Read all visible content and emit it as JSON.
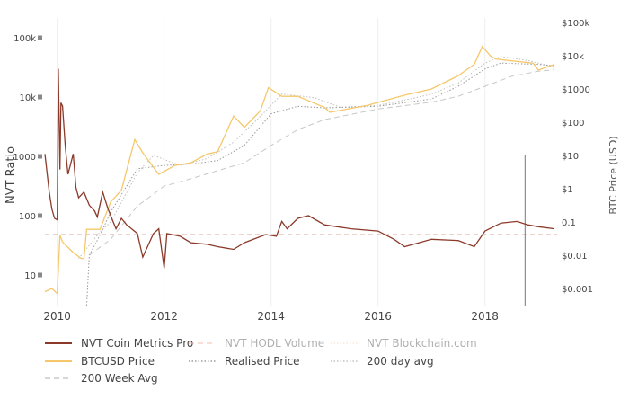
{
  "chart_data": {
    "type": "line",
    "title": "",
    "xlabel": "",
    "ylabel_left": "NVT Ratio",
    "ylabel_right": "BTC Price (USD)",
    "x_range": [
      2009.77,
      2019.35
    ],
    "left_axis": {
      "scale": "log",
      "range": [
        4,
        200000
      ],
      "ticks": [
        10,
        100,
        1000,
        10000,
        100000
      ],
      "tick_labels": [
        "10",
        "100",
        "1000",
        "10k",
        "100k"
      ]
    },
    "right_axis": {
      "scale": "log",
      "range": [
        0.0003,
        150000
      ],
      "ticks": [
        0.001,
        0.01,
        0.1,
        1,
        10,
        100,
        1000,
        10000,
        100000
      ],
      "tick_labels": [
        "$0.001",
        "$0.01",
        "0.1",
        "$1",
        "$10",
        "$100",
        "$1000",
        "$10k",
        "$100k"
      ]
    },
    "x_ticks": [
      2010,
      2012,
      2014,
      2016,
      2018
    ],
    "x_tick_labels": [
      "2010",
      "2012",
      "2014",
      "2016",
      "2018"
    ],
    "grid": {
      "vertical": true,
      "horizontal": false
    },
    "reference_line": {
      "axis": "left",
      "value": 48,
      "color": "#d9a89c"
    },
    "marker_line": {
      "x": 2018.75,
      "axis": "right",
      "from": 0.0003,
      "to": 10
    },
    "series": [
      {
        "name": "NVT Coin Metrics Pro",
        "axis": "left",
        "color": "#8b3a2a",
        "style": "solid",
        "visible": true,
        "x": [
          2009.77,
          2009.85,
          2009.9,
          2009.95,
          2010.0,
          2010.02,
          2010.05,
          2010.07,
          2010.1,
          2010.15,
          2010.2,
          2010.3,
          2010.35,
          2010.4,
          2010.5,
          2010.6,
          2010.7,
          2010.75,
          2010.85,
          2010.95,
          2011.0,
          2011.1,
          2011.2,
          2011.3,
          2011.5,
          2011.6,
          2011.8,
          2011.9,
          2012.0,
          2012.05,
          2012.3,
          2012.5,
          2012.8,
          2013.0,
          2013.3,
          2013.5,
          2013.9,
          2014.1,
          2014.2,
          2014.3,
          2014.5,
          2014.7,
          2015.0,
          2015.5,
          2016.0,
          2016.3,
          2016.5,
          2017.0,
          2017.5,
          2017.8,
          2018.0,
          2018.3,
          2018.6,
          2018.8,
          2019.0,
          2019.3
        ],
        "y": [
          1100,
          250,
          130,
          90,
          85,
          30000,
          600,
          8000,
          7000,
          1500,
          500,
          1100,
          300,
          200,
          250,
          150,
          120,
          95,
          250,
          130,
          100,
          60,
          90,
          70,
          50,
          20,
          50,
          60,
          13,
          50,
          45,
          35,
          33,
          30,
          27,
          35,
          48,
          45,
          80,
          60,
          90,
          100,
          70,
          60,
          55,
          40,
          30,
          40,
          38,
          30,
          55,
          75,
          80,
          70,
          65,
          60
        ]
      },
      {
        "name": "NVT HODL Volume",
        "axis": "left",
        "color": "#f0b8a8",
        "style": "dashed",
        "visible": false
      },
      {
        "name": "NVT Blockchain.com",
        "axis": "left",
        "color": "#f8d8c0",
        "style": "dotted",
        "visible": false
      },
      {
        "name": "BTCUSD Price",
        "axis": "right",
        "color": "#f5c76a",
        "style": "solid",
        "visible": true,
        "x": [
          2009.77,
          2009.9,
          2010.0,
          2010.05,
          2010.1,
          2010.3,
          2010.45,
          2010.5,
          2010.55,
          2010.8,
          2011.0,
          2011.2,
          2011.45,
          2011.6,
          2011.9,
          2012.2,
          2012.5,
          2012.8,
          2013.0,
          2013.3,
          2013.5,
          2013.8,
          2013.95,
          2014.2,
          2014.5,
          2015.0,
          2015.1,
          2015.8,
          2016.5,
          2017.0,
          2017.5,
          2017.8,
          2017.95,
          2018.1,
          2018.2,
          2018.5,
          2018.9,
          2019.0,
          2019.3
        ],
        "y": [
          0.0008,
          0.001,
          0.0007,
          0.04,
          0.025,
          0.012,
          0.008,
          0.008,
          0.06,
          0.06,
          0.4,
          0.9,
          30,
          12,
          2.7,
          5,
          6,
          11,
          13,
          155,
          70,
          220,
          1100,
          600,
          600,
          280,
          200,
          320,
          650,
          1000,
          2500,
          5500,
          19000,
          10000,
          8000,
          7000,
          6000,
          3700,
          5500
        ]
      },
      {
        "name": "Realised Price",
        "axis": "right",
        "color": "#9a9a9a",
        "style": "dotted",
        "visible": true,
        "x": [
          2010.55,
          2010.6,
          2010.8,
          2011.0,
          2011.5,
          2012.0,
          2012.5,
          2013.0,
          2013.5,
          2014.0,
          2014.5,
          2015.0,
          2016.0,
          2017.0,
          2017.5,
          2018.0,
          2018.3,
          2019.0,
          2019.3
        ],
        "y": [
          0.0003,
          0.01,
          0.04,
          0.2,
          4,
          5,
          5.5,
          7,
          20,
          180,
          300,
          270,
          300,
          500,
          1200,
          4000,
          6000,
          5500,
          5000
        ]
      },
      {
        "name": "200 day avg",
        "axis": "right",
        "color": "#c0c0c0",
        "style": "dotted",
        "visible": true,
        "x": [
          2010.4,
          2010.8,
          2011.0,
          2011.5,
          2011.8,
          2012.3,
          2012.8,
          2013.3,
          2013.8,
          2014.2,
          2014.8,
          2015.3,
          2016.0,
          2016.6,
          2017.0,
          2017.5,
          2018.0,
          2018.3,
          2018.8,
          2019.3
        ],
        "y": [
          0.008,
          0.05,
          0.1,
          3,
          10,
          5,
          8,
          25,
          150,
          700,
          550,
          280,
          320,
          500,
          700,
          1500,
          6000,
          9500,
          7200,
          4500
        ]
      },
      {
        "name": "200 Week Avg",
        "axis": "right",
        "color": "#c8c8c8",
        "style": "dashed",
        "visible": true,
        "x": [
          2010.6,
          2011.0,
          2011.5,
          2012.0,
          2012.5,
          2013.0,
          2013.5,
          2014.0,
          2014.5,
          2015.0,
          2016.0,
          2017.0,
          2017.5,
          2018.0,
          2018.5,
          2019.0,
          2019.3
        ],
        "y": [
          0.01,
          0.03,
          0.3,
          1.2,
          2,
          3.5,
          6,
          20,
          60,
          120,
          250,
          400,
          600,
          1200,
          2400,
          3400,
          3800
        ]
      }
    ]
  }
}
